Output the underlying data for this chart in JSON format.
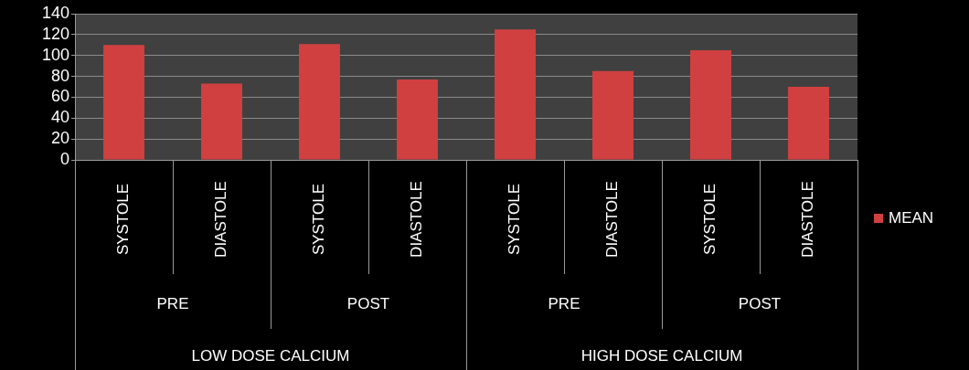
{
  "chart_data": {
    "type": "bar",
    "categories": [
      "SYSTOLE",
      "DIASTOLE",
      "SYSTOLE",
      "DIASTOLE",
      "SYSTOLE",
      "DIASTOLE",
      "SYSTOLE",
      "DIASTOLE"
    ],
    "series": [
      {
        "name": "MEAN",
        "color": "#d04040",
        "values": [
          110,
          73,
          111,
          77,
          125,
          85,
          105,
          70
        ]
      }
    ],
    "ylim": [
      0,
      140
    ],
    "yticks": [
      0,
      20,
      40,
      60,
      80,
      100,
      120,
      140
    ],
    "grid": "y",
    "legend": "right",
    "annotations": [
      "PRE",
      "POST",
      "PRE",
      "POST",
      "LOW DOSE CALCIUM",
      "HIGH DOSE CALCIUM"
    ]
  }
}
